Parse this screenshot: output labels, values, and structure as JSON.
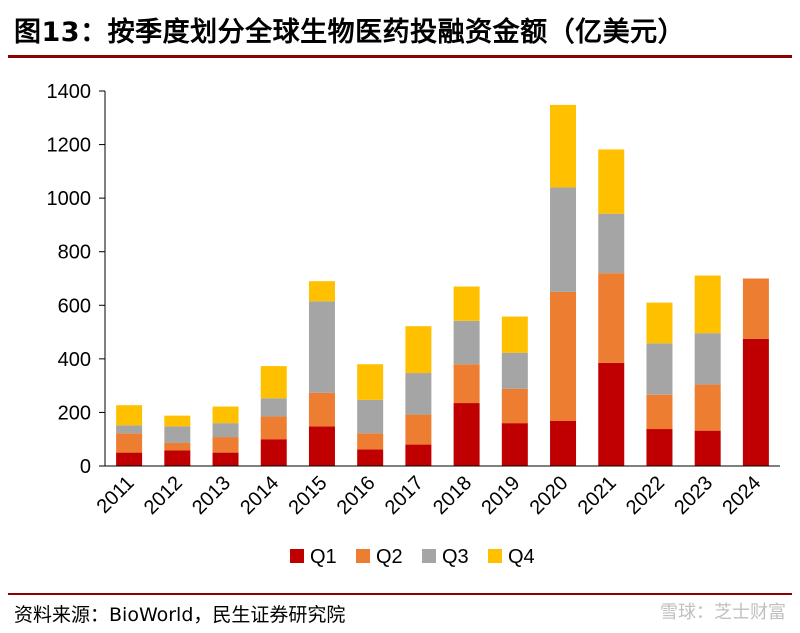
{
  "header": {
    "title": "图13：按季度划分全球生物医药投融资金额（亿美元）"
  },
  "footer": {
    "source": "资料来源：BioWorld，民生证券研究院",
    "watermark": "雪球：芝士财富"
  },
  "chart_data": {
    "type": "bar",
    "stacked": true,
    "title": "图13：按季度划分全球生物医药投融资金额（亿美元）",
    "xlabel": "",
    "ylabel": "",
    "categories": [
      "2011",
      "2012",
      "2013",
      "2014",
      "2015",
      "2016",
      "2017",
      "2018",
      "2019",
      "2020",
      "2021",
      "2022",
      "2023",
      "2024"
    ],
    "series": [
      {
        "name": "Q1",
        "color": "#c00000",
        "values": [
          50,
          58,
          50,
          100,
          148,
          62,
          80,
          235,
          160,
          168,
          385,
          138,
          132,
          475
        ]
      },
      {
        "name": "Q2",
        "color": "#ed7d31",
        "values": [
          72,
          28,
          58,
          85,
          125,
          60,
          112,
          145,
          128,
          482,
          335,
          128,
          172,
          225
        ]
      },
      {
        "name": "Q3",
        "color": "#a5a5a5",
        "values": [
          30,
          62,
          52,
          68,
          342,
          125,
          155,
          162,
          135,
          390,
          222,
          192,
          192,
          0
        ]
      },
      {
        "name": "Q4",
        "color": "#ffc000",
        "values": [
          75,
          40,
          62,
          120,
          75,
          133,
          175,
          128,
          135,
          308,
          240,
          152,
          215,
          0
        ]
      }
    ],
    "ylim": [
      0,
      1400
    ],
    "yticks": [
      0,
      200,
      400,
      600,
      800,
      1000,
      1200,
      1400
    ],
    "grid": false,
    "legend": "bottom"
  }
}
